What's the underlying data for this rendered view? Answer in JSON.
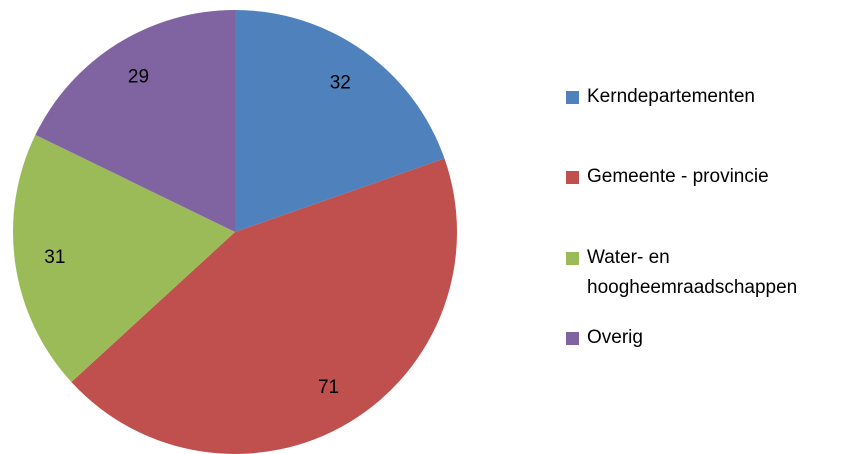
{
  "chart_data": {
    "type": "pie",
    "categories": [
      "Kerndepartementen",
      "Gemeente - provincie",
      "Water- en hoogheemraadschappen",
      "Overig"
    ],
    "values": [
      32,
      71,
      31,
      29
    ],
    "colors": [
      "#4f81bd",
      "#c0504d",
      "#9bbb59",
      "#8064a2"
    ],
    "legend": "right"
  }
}
